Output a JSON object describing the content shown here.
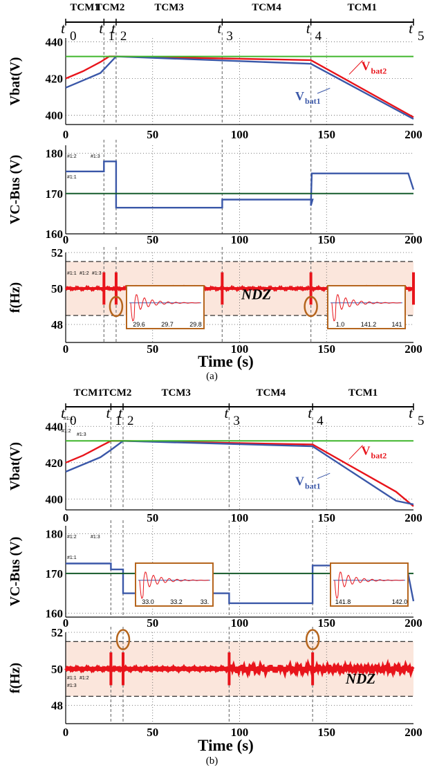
{
  "colors": {
    "red": "#e8141b",
    "blue": "#3a57a8",
    "green": "#3fb62b",
    "dark_green": "#145a2a",
    "ndz_fill": "#fbe6dc",
    "orange": "#b5651d",
    "grid": "#555555"
  },
  "chart_data": [
    {
      "panel": "(a)",
      "type": "line",
      "caption": "(a)",
      "shared_xlabel": "Time (s)",
      "x_ticks": [
        "0",
        "50",
        "100",
        "150",
        "200"
      ],
      "xlim": [
        0,
        200
      ],
      "modes": [
        {
          "label": "TCM1",
          "start": 0,
          "end": 22
        },
        {
          "label": "TCM2",
          "start": 22,
          "end": 29
        },
        {
          "label": "TCM3",
          "start": 29,
          "end": 90
        },
        {
          "label": "TCM4",
          "start": 90,
          "end": 141
        },
        {
          "label": "TCM1",
          "start": 141,
          "end": 200
        }
      ],
      "instants": [
        {
          "name": "t",
          "sub": "0",
          "x": 0
        },
        {
          "name": "t",
          "sub": "1",
          "x": 22
        },
        {
          "name": "t",
          "sub": "2",
          "x": 29
        },
        {
          "name": "t",
          "sub": "3",
          "x": 90
        },
        {
          "name": "t",
          "sub": "4",
          "x": 141
        },
        {
          "name": "t",
          "sub": "5",
          "x": 200
        }
      ],
      "subplots": [
        {
          "id": "vbat",
          "ylabel": "Vbat(V)",
          "ylim": [
            395,
            442
          ],
          "y_ticks": [
            "400",
            "420",
            "440"
          ],
          "y_tick_values": [
            400,
            420,
            440
          ],
          "x_tick_values": [
            0,
            50,
            100,
            150,
            200
          ],
          "series": [
            {
              "name": "V bat2",
              "label_main": "V",
              "label_sub": "bat2",
              "color_key": "red",
              "x": [
                0,
                10,
                20,
                25,
                29,
                141,
                200
              ],
              "y": [
                420,
                424,
                429,
                432,
                432,
                430,
                399
              ]
            },
            {
              "name": "V bat1",
              "label_main": "V",
              "label_sub": "bat1",
              "color_key": "blue",
              "x": [
                0,
                10,
                20,
                25,
                29,
                141,
                200
              ],
              "y": [
                415,
                419,
                423,
                428,
                432,
                428,
                398
              ]
            },
            {
              "name": "",
              "color_key": "green",
              "x": [
                0,
                200
              ],
              "y": [
                432,
                432
              ]
            }
          ]
        },
        {
          "id": "vbus",
          "ylabel": "VC-Bus (V)",
          "ylim": [
            160,
            182
          ],
          "y_ticks": [
            "160",
            "170",
            "180"
          ],
          "y_tick_values": [
            160,
            170,
            180
          ],
          "x_tick_values": [
            0,
            50,
            100,
            150,
            200
          ],
          "series": [
            {
              "name": "",
              "color_key": "blue",
              "x": [
                0,
                22,
                22,
                29,
                29,
                90,
                90,
                141,
                142,
                141,
                141.5,
                197,
                200
              ],
              "y": [
                175.5,
                175.5,
                178,
                178,
                166.5,
                166.5,
                168.5,
                168.5,
                168.5,
                167,
                175,
                175,
                171
              ]
            },
            {
              "name": "",
              "color_key": "dark_green",
              "x": [
                0,
                200
              ],
              "y": [
                170,
                170
              ]
            }
          ],
          "measure_labels": [
            "#1:2",
            "#1:3",
            "#1:1"
          ]
        },
        {
          "id": "freq",
          "ylabel": "f(Hz)",
          "ylim": [
            47,
            52
          ],
          "y_ticks": [
            "48",
            "50",
            "52"
          ],
          "y_tick_values": [
            48,
            50,
            52
          ],
          "band": [
            48.5,
            51.5
          ],
          "band_label": "NDZ",
          "nominal": 50,
          "spikes": [
            22,
            29,
            90,
            141,
            200
          ],
          "measure_labels": [
            "#1:1",
            "#1:2",
            "#1:3"
          ],
          "insets": [
            {
              "at": 29,
              "ticks": [
                "29.6",
                "29.7",
                "29.8"
              ]
            },
            {
              "at": 141,
              "ticks": [
                "1.0",
                "141.2",
                "141"
              ]
            }
          ]
        }
      ]
    },
    {
      "panel": "(b)",
      "type": "line",
      "caption": "(b)",
      "shared_xlabel": "Time (s)",
      "x_ticks": [
        "0",
        "50",
        "100",
        "150",
        "200"
      ],
      "xlim": [
        0,
        200
      ],
      "modes": [
        {
          "label": "TCM1",
          "start": 0,
          "end": 26
        },
        {
          "label": "TCM2",
          "start": 26,
          "end": 33
        },
        {
          "label": "TCM3",
          "start": 33,
          "end": 94
        },
        {
          "label": "TCM4",
          "start": 94,
          "end": 142
        },
        {
          "label": "TCM1",
          "start": 142,
          "end": 200
        }
      ],
      "instants": [
        {
          "name": "t",
          "sub": "0",
          "x": 0
        },
        {
          "name": "t",
          "sub": "1",
          "x": 26
        },
        {
          "name": "t",
          "sub": "2",
          "x": 33
        },
        {
          "name": "t",
          "sub": "3",
          "x": 94
        },
        {
          "name": "t",
          "sub": "4",
          "x": 142
        },
        {
          "name": "t",
          "sub": "5",
          "x": 200
        }
      ],
      "subplots": [
        {
          "id": "vbat",
          "ylabel": "Vbat(V)",
          "ylim": [
            394,
            442
          ],
          "y_ticks": [
            "400",
            "420",
            "440"
          ],
          "y_tick_values": [
            400,
            420,
            440
          ],
          "x_tick_values": [
            0,
            50,
            100,
            150,
            200
          ],
          "series": [
            {
              "name": "V bat2",
              "label_main": "V",
              "label_sub": "bat2",
              "color_key": "red",
              "x": [
                0,
                10,
                20,
                26,
                33,
                142,
                190,
                200
              ],
              "y": [
                420,
                424,
                429,
                432,
                432,
                430,
                404,
                396
              ]
            },
            {
              "name": "V bat1",
              "label_main": "V",
              "label_sub": "bat1",
              "color_key": "blue",
              "x": [
                0,
                10,
                20,
                26,
                33,
                142,
                190,
                200
              ],
              "y": [
                415,
                419,
                423,
                427,
                432,
                429,
                399,
                397
              ]
            },
            {
              "name": "",
              "color_key": "green",
              "x": [
                0,
                200
              ],
              "y": [
                432,
                432
              ]
            }
          ],
          "measure_labels": [
            "#1:1",
            "#1:2",
            "#1:3"
          ]
        },
        {
          "id": "vbus",
          "ylabel": "VC-Bus (V)",
          "ylim": [
            159,
            182
          ],
          "y_ticks": [
            "160",
            "170",
            "180"
          ],
          "y_tick_values": [
            160,
            170,
            180
          ],
          "x_tick_values": [
            0,
            50,
            100,
            150,
            200
          ],
          "series": [
            {
              "name": "",
              "color_key": "blue",
              "x": [
                0,
                26,
                26,
                33,
                33,
                94,
                94,
                142,
                142,
                196,
                200
              ],
              "y": [
                172.5,
                172.5,
                171,
                171,
                165,
                165,
                162.5,
                162.5,
                172,
                172,
                163
              ]
            },
            {
              "name": "",
              "color_key": "dark_green",
              "x": [
                0,
                200
              ],
              "y": [
                170,
                170
              ]
            }
          ],
          "measure_labels": [
            "#1:2",
            "#1:3",
            "#1:1"
          ]
        },
        {
          "id": "freq",
          "ylabel": "f(Hz)",
          "ylim": [
            47,
            52
          ],
          "y_ticks": [
            "48",
            "50",
            "52"
          ],
          "y_tick_values": [
            48,
            50,
            52
          ],
          "band": [
            48.5,
            51.5
          ],
          "band_label": "NDZ",
          "nominal": 50,
          "spikes": [
            26,
            33,
            94,
            142
          ],
          "measure_labels": [
            "#1:1",
            "#1:2",
            "#1:3"
          ],
          "insets": [
            {
              "at": 33,
              "ticks": [
                "33.0",
                "33.2",
                "33."
              ]
            },
            {
              "at": 142,
              "ticks": [
                "141.8",
                "142.0"
              ]
            }
          ]
        }
      ]
    }
  ]
}
